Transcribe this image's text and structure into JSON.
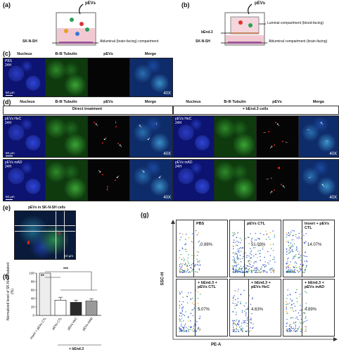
{
  "panels": {
    "a": "(a)",
    "b": "(b)",
    "c": "(c)",
    "d": "(d)",
    "e": "(e)",
    "f": "(f)",
    "g": "(g)"
  },
  "panel_a": {
    "pevs": "pEVs",
    "cell": "SK-N-SH",
    "compartment": "Abluminal (brain-facing) compartment"
  },
  "panel_b": {
    "pevs": "pEVs",
    "luminal": "Luminal compartment (blood-facing)",
    "bend": "bEnd.3",
    "cell": "SK-N-SH",
    "abluminal": "Abluminal compartment (brain-facing)"
  },
  "panel_c": {
    "col_nucleus": "Nucleus",
    "col_tubulin": "B-III Tubulin",
    "col_pevs": "pEVs",
    "col_merge": "Merge",
    "row_label1": "PBS",
    "row_label2": "24H",
    "scale": "50 µm",
    "mag": "40X"
  },
  "panel_d": {
    "col_nucleus": "Nucleus",
    "col_tubulin": "B-III Tubulin",
    "col_pevs": "pEVs",
    "col_merge": "Merge",
    "direct": "Direct treatment",
    "plus_bend": "+ bEnd.3 cells",
    "row1a": "pEVs HeC",
    "row1b": "24H",
    "row2a": "pEVs mAD",
    "row2b": "24H",
    "scale": "50 µm",
    "mag": "40X"
  },
  "panel_e": {
    "title": "pEVs in SK-N-SH cells",
    "scale": "10 µm"
  },
  "panel_f": {
    "ylabel": "Normalized level of SK-N-SH labeled (%)",
    "sig1": "**",
    "sig2": "***",
    "group_label": "+ bEnd.3"
  },
  "panel_g": {
    "ylabel": "SSC-H",
    "xlabel": "PE-A",
    "plots": [
      {
        "title": "PBS",
        "pct": "0.88%"
      },
      {
        "title": "pEVs CTL",
        "pct": "51.03%"
      },
      {
        "title": "Insert + pEVs CTL",
        "pct": "14.07%"
      },
      {
        "title": "+ bEnd.3 + pEVs CTL",
        "pct": "5.07%"
      },
      {
        "title": "+ bEnd.3 + pEVs HeC",
        "pct": "4.63%"
      },
      {
        "title": "+ bEnd.3 + pEVs mAD",
        "pct": "4.89%"
      }
    ]
  },
  "chart_data": {
    "type": "bar",
    "categories": [
      "Insert + pEVs CTL",
      "pEVs CTL",
      "pEVs HeC",
      "pEVs mAD"
    ],
    "values": [
      100,
      36,
      31,
      34
    ],
    "errors": [
      0,
      7,
      5,
      5
    ],
    "ylim": [
      0,
      100
    ],
    "yticks": [
      0,
      20,
      40,
      60,
      80,
      100
    ],
    "ylabel": "Normalized level of SK-N-SH labeled (%)",
    "colors": [
      "#ffffff",
      "#ffffff",
      "#2a2a2a",
      "#9a9a9a"
    ]
  }
}
